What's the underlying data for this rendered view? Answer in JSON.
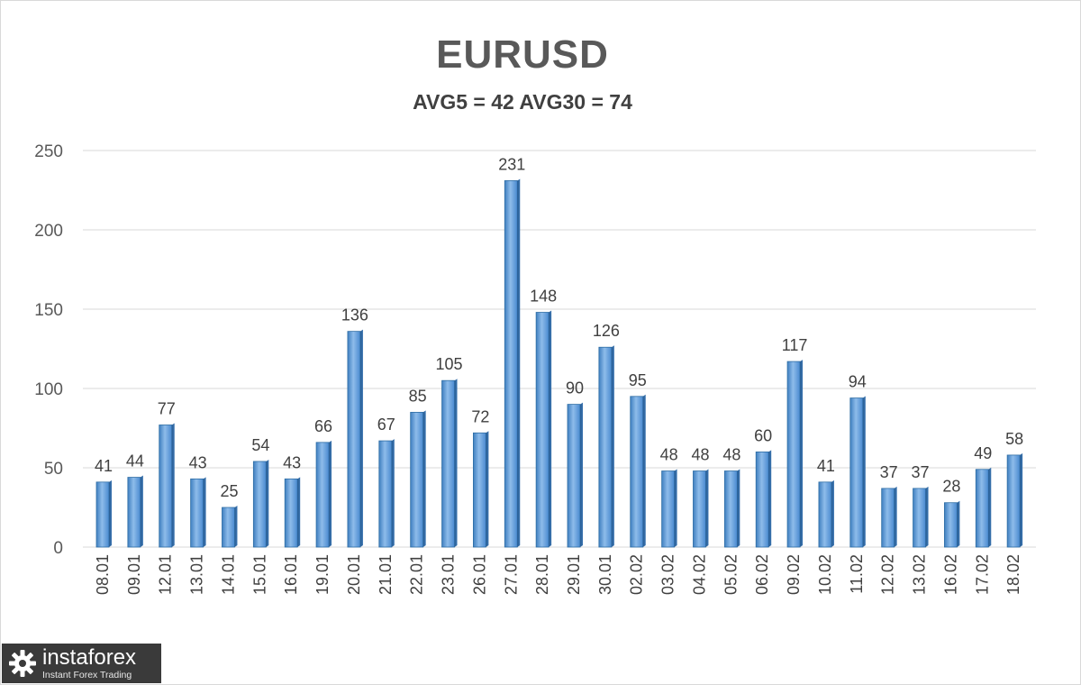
{
  "chart_data": {
    "type": "bar",
    "title": "EURUSD",
    "subtitle": "AVG5 = 42 AVG30 = 74",
    "xlabel": "",
    "ylabel": "",
    "ylim": [
      0,
      250
    ],
    "yticks": [
      0,
      50,
      100,
      150,
      200,
      250
    ],
    "grid": true,
    "legend": "none",
    "categories": [
      "08.01",
      "09.01",
      "12.01",
      "13.01",
      "14.01",
      "15.01",
      "16.01",
      "19.01",
      "20.01",
      "21.01",
      "22.01",
      "23.01",
      "26.01",
      "27.01",
      "28.01",
      "29.01",
      "30.01",
      "02.02",
      "03.02",
      "04.02",
      "05.02",
      "06.02",
      "09.02",
      "10.02",
      "11.02",
      "12.02",
      "13.02",
      "16.02",
      "17.02",
      "18.02"
    ],
    "values": [
      41,
      44,
      77,
      43,
      25,
      54,
      43,
      66,
      136,
      67,
      85,
      105,
      72,
      231,
      148,
      90,
      126,
      95,
      48,
      48,
      48,
      60,
      117,
      41,
      94,
      37,
      37,
      28,
      49,
      58
    ],
    "bar_color": "#5b9bd5",
    "bar_edge_color": "#2e6da4",
    "grid_color": "#d9d9d9"
  },
  "logo": {
    "name": "instaforex",
    "tagline": "Instant Forex Trading",
    "icon": "gear-logo-icon"
  }
}
